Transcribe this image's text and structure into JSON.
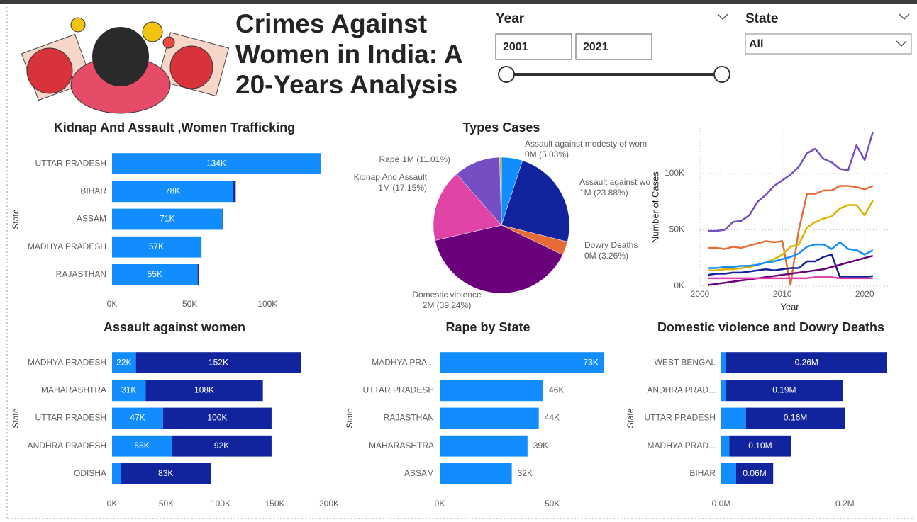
{
  "header": {
    "title": "Crimes Against Women in India: A 20-Years Analysis"
  },
  "filters": {
    "year": {
      "label": "Year",
      "from": "2001",
      "to": "2021"
    },
    "state": {
      "label": "State",
      "value": "All"
    }
  },
  "chart_data": [
    {
      "type": "bar",
      "title": "Kidnap And Assault ,Women Trafficking",
      "y_label": "State",
      "categories": [
        "UTTAR PRADESH",
        "BIHAR",
        "ASSAM",
        "MADHYA PRADESH",
        "RAJASTHAN"
      ],
      "series": [
        {
          "color": "#118DFF",
          "values": [
            134000,
            78000,
            71000,
            57000,
            55000
          ],
          "value_labels": [
            "134K",
            "78K",
            "71K",
            "57K",
            "55K"
          ]
        },
        {
          "color": "#12239E",
          "values": [
            300,
            1500,
            400,
            500,
            600
          ]
        }
      ],
      "xlim": [
        0,
        140000
      ],
      "xticks": [
        {
          "value": 0,
          "label": "0K"
        },
        {
          "value": 50000,
          "label": "50K"
        },
        {
          "value": 100000,
          "label": "100K"
        }
      ]
    },
    {
      "type": "pie",
      "title": "Types Cases",
      "categories": [
        "Assault against modesty of wom",
        "Assault against wo",
        "Dowry Deaths",
        "Domestic violence",
        "Kidnap And Assault",
        "Rape",
        null
      ],
      "values": [
        5.03,
        23.88,
        3.26,
        39.24,
        17.15,
        11.01,
        0.43
      ],
      "value_labels": [
        "0M (5.03%)",
        "1M (23.88%)",
        "0M (3.26%)",
        "2M (39.24%)",
        "1M (17.15%)",
        "1M (11.01%)",
        null
      ],
      "colors": [
        "#118DFF",
        "#12239E",
        "#E66C37",
        "#6B007B",
        "#E044A7",
        "#744EC2",
        "#D9B300"
      ]
    },
    {
      "type": "line",
      "x_label": "Year",
      "y_label": "Number of Cases",
      "grid": true,
      "x": [
        2001,
        2002,
        2003,
        2004,
        2005,
        2006,
        2007,
        2008,
        2009,
        2010,
        2011,
        2012,
        2013,
        2014,
        2015,
        2016,
        2017,
        2018,
        2019,
        2020,
        2021
      ],
      "xlim": [
        2000,
        2023
      ],
      "xticks": [
        2000,
        2010,
        2020
      ],
      "ylim": [
        0,
        140000
      ],
      "yticks": [
        {
          "value": 0,
          "label": "0K"
        },
        {
          "value": 50000,
          "label": "50K"
        },
        {
          "value": 100000,
          "label": "100K"
        }
      ],
      "series": [
        {
          "color": "#744EC2",
          "values": [
            49000,
            49000,
            50000,
            57000,
            58000,
            63000,
            75000,
            81000,
            89000,
            94000,
            99000,
            106000,
            118000,
            122000,
            113000,
            110000,
            104000,
            103000,
            125000,
            112000,
            137000
          ]
        },
        {
          "color": "#E66C37",
          "values": [
            34000,
            34000,
            33000,
            35000,
            34000,
            36000,
            38000,
            40000,
            39000,
            40000,
            1000,
            50000,
            82000,
            82000,
            85000,
            85000,
            89000,
            89000,
            88000,
            86000,
            89000
          ]
        },
        {
          "color": "#D9B300",
          "values": [
            14000,
            14000,
            15000,
            15000,
            16000,
            17000,
            19000,
            21000,
            24000,
            28000,
            35000,
            37000,
            52000,
            57000,
            60000,
            62000,
            69000,
            72000,
            72000,
            63000,
            76000
          ]
        },
        {
          "color": "#118DFF",
          "values": [
            16000,
            16000,
            17000,
            17000,
            18000,
            18000,
            19000,
            21000,
            22000,
            24000,
            26000,
            29000,
            35000,
            37000,
            37000,
            33000,
            39000,
            33000,
            32000,
            28000,
            32000
          ]
        },
        {
          "color": "#12239E",
          "values": [
            10000,
            11000,
            11000,
            12000,
            12000,
            13000,
            14000,
            15000,
            14000,
            15000,
            16000,
            16000,
            22000,
            22000,
            26000,
            28000,
            8000,
            8000,
            8000,
            8000,
            9000
          ]
        },
        {
          "color": "#6B007B",
          "values": [
            1000,
            2000,
            3000,
            4000,
            5000,
            6000,
            7000,
            8000,
            9000,
            10000,
            11000,
            12000,
            13000,
            14000,
            15000,
            17000,
            19000,
            21000,
            23000,
            25000,
            27000
          ]
        },
        {
          "color": "#E044A7",
          "values": [
            7000,
            7000,
            7000,
            7000,
            7000,
            7000,
            7000,
            7000,
            7000,
            7000,
            7000,
            7000,
            7000,
            8000,
            8000,
            8000,
            7000,
            7000,
            7000,
            7000,
            7000
          ]
        }
      ]
    },
    {
      "type": "bar",
      "title": "Assault against women",
      "y_label": "State",
      "categories": [
        "MADHYA PRADESH",
        "MAHARASHTRA",
        "UTTAR PRADESH",
        "ANDHRA PRADESH",
        "ODISHA"
      ],
      "series": [
        {
          "color": "#118DFF",
          "values": [
            22000,
            31000,
            47000,
            55000,
            8000
          ],
          "value_labels": [
            "22K",
            "31K",
            "47K",
            "55K",
            null
          ]
        },
        {
          "color": "#12239E",
          "values": [
            152000,
            108000,
            100000,
            92000,
            83000
          ],
          "value_labels": [
            "152K",
            "108K",
            "100K",
            "92K",
            "83K"
          ]
        }
      ],
      "xlim": [
        0,
        200000
      ],
      "xticks": [
        {
          "value": 0,
          "label": "0K"
        },
        {
          "value": 50000,
          "label": "50K"
        },
        {
          "value": 100000,
          "label": "100K"
        },
        {
          "value": 150000,
          "label": "150K"
        },
        {
          "value": 200000,
          "label": "200K"
        }
      ]
    },
    {
      "type": "bar",
      "title": "Rape by State",
      "y_label": "State",
      "categories": [
        "MADHYA PRA...",
        "UTTAR PRADESH",
        "RAJASTHAN",
        "MAHARASHTRA",
        "ASSAM"
      ],
      "series": [
        {
          "color": "#118DFF",
          "values": [
            73000,
            46000,
            44000,
            39000,
            32000
          ],
          "value_labels": [
            "73K",
            "46K",
            "44K",
            "39K",
            "32K"
          ]
        }
      ],
      "xlim": [
        0,
        80000
      ],
      "xticks": [
        {
          "value": 0,
          "label": "0K"
        },
        {
          "value": 50000,
          "label": "50K"
        }
      ]
    },
    {
      "type": "bar",
      "title": "Domestic violence and Dowry Deaths",
      "y_label": "State",
      "categories": [
        "WEST BENGAL",
        "ANDHRA PRAD...",
        "UTTAR PRADESH",
        "MADHYA PRAD...",
        "BIHAR"
      ],
      "series": [
        {
          "color": "#118DFF",
          "values": [
            0.008,
            0.007,
            0.04,
            0.013,
            0.024
          ]
        },
        {
          "color": "#12239E",
          "values": [
            0.26,
            0.19,
            0.16,
            0.1,
            0.06
          ],
          "value_labels": [
            "0.26M",
            "0.19M",
            "0.16M",
            "0.10M",
            "0.06M"
          ]
        }
      ],
      "xlim": [
        0,
        0.28
      ],
      "xticks": [
        {
          "value": 0,
          "label": "0.0M"
        },
        {
          "value": 0.2,
          "label": "0.2M"
        }
      ]
    }
  ]
}
